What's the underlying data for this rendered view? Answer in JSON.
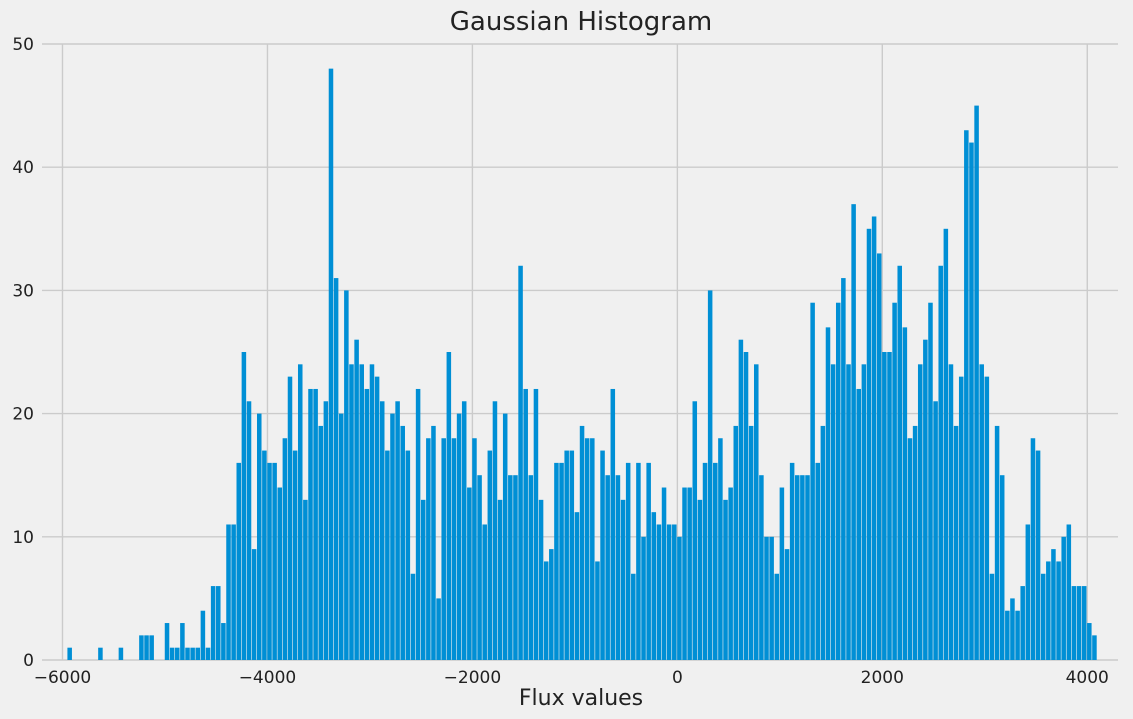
{
  "chart_data": {
    "type": "bar",
    "title": "Gaussian Histogram",
    "xlabel": "Flux values",
    "ylabel": "",
    "xlim": [
      -6200,
      4300
    ],
    "ylim": [
      0,
      50
    ],
    "xticks": [
      -6000,
      -4000,
      -2000,
      0,
      2000,
      4000
    ],
    "xtick_labels": [
      "−6000",
      "−4000",
      "−2000",
      "0",
      "2000",
      "4000"
    ],
    "yticks": [
      0,
      10,
      20,
      30,
      40,
      50
    ],
    "grid": true,
    "legend": "none",
    "bar_color": "#008fd5",
    "background": "#f0f0f0",
    "bin_start": -5952,
    "bin_width": 50,
    "values": [
      1,
      0,
      0,
      0,
      0,
      0,
      1,
      0,
      0,
      0,
      1,
      0,
      0,
      0,
      2,
      2,
      2,
      0,
      0,
      3,
      1,
      1,
      3,
      1,
      1,
      1,
      4,
      1,
      6,
      6,
      3,
      11,
      11,
      16,
      25,
      21,
      9,
      20,
      17,
      16,
      16,
      14,
      18,
      23,
      17,
      24,
      13,
      22,
      22,
      19,
      21,
      48,
      31,
      20,
      30,
      24,
      26,
      24,
      22,
      24,
      23,
      21,
      17,
      20,
      21,
      19,
      17,
      7,
      22,
      13,
      18,
      19,
      5,
      18,
      25,
      18,
      20,
      21,
      14,
      18,
      15,
      11,
      17,
      21,
      13,
      20,
      15,
      15,
      32,
      22,
      15,
      22,
      13,
      8,
      9,
      16,
      16,
      17,
      17,
      12,
      19,
      18,
      18,
      8,
      17,
      15,
      22,
      15,
      13,
      16,
      7,
      16,
      10,
      16,
      12,
      11,
      14,
      11,
      11,
      10,
      14,
      14,
      21,
      13,
      16,
      30,
      16,
      18,
      13,
      14,
      19,
      26,
      25,
      19,
      24,
      15,
      10,
      10,
      7,
      14,
      9,
      16,
      15,
      15,
      15,
      29,
      16,
      19,
      27,
      24,
      29,
      31,
      24,
      37,
      22,
      24,
      35,
      36,
      33,
      25,
      25,
      29,
      32,
      27,
      18,
      19,
      24,
      26,
      29,
      21,
      32,
      35,
      24,
      19,
      23,
      43,
      42,
      45,
      24,
      23,
      7,
      19,
      15,
      4,
      5,
      4,
      6,
      11,
      18,
      17,
      7,
      8,
      9,
      8,
      10,
      11,
      6,
      6,
      6,
      3,
      2
    ]
  }
}
